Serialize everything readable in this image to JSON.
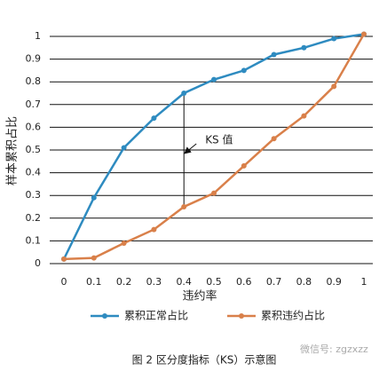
{
  "chart_data": {
    "type": "line",
    "x": [
      0,
      0.1,
      0.2,
      0.3,
      0.4,
      0.5,
      0.6,
      0.7,
      0.8,
      0.9,
      1
    ],
    "series": [
      {
        "name": "累积正常占比",
        "color": "#2e8bc0",
        "values": [
          0.02,
          0.29,
          0.51,
          0.64,
          0.75,
          0.81,
          0.85,
          0.92,
          0.95,
          0.99,
          1.01
        ]
      },
      {
        "name": "累积违约占比",
        "color": "#d9804a",
        "values": [
          0.02,
          0.025,
          0.09,
          0.15,
          0.25,
          0.31,
          0.43,
          0.55,
          0.65,
          0.78,
          1.01
        ]
      }
    ],
    "xlim": [
      0,
      1
    ],
    "xticks": [
      0,
      0.1,
      0.2,
      0.3,
      0.4,
      0.5,
      0.6,
      0.7,
      0.8,
      0.9,
      1
    ],
    "ylim": [
      0,
      1
    ],
    "yticks": [
      0,
      0.1,
      0.2,
      0.3,
      0.4,
      0.5,
      0.6,
      0.7,
      0.8,
      0.9,
      1
    ],
    "grid": true,
    "xlabel": "违约率",
    "ylabel": "样本累积占比",
    "annotation": "KS 值",
    "caption": "图 2 区分度指标（KS）示意图",
    "watermark": "微信号: zgzxzz"
  }
}
